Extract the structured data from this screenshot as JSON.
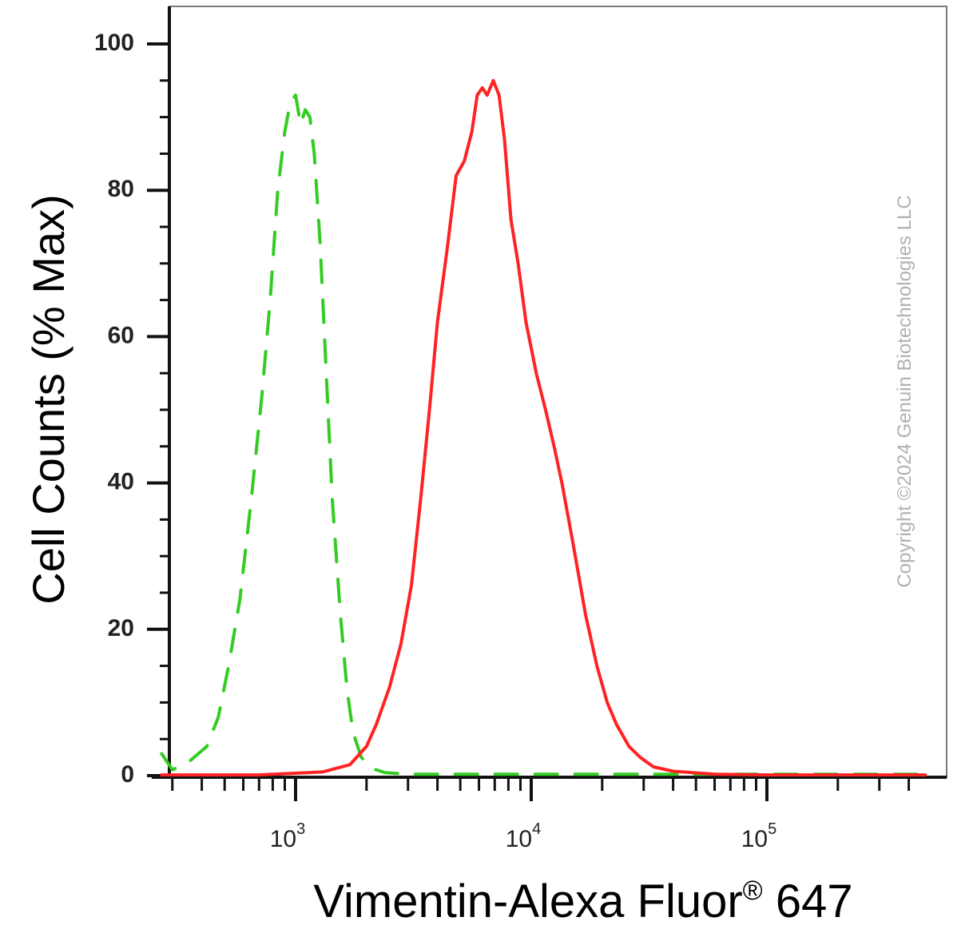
{
  "chart_data": {
    "type": "line",
    "xlabel": "Vimentin-Alexa Fluor",
    "xlabel_superscript": "®",
    "xlabel_suffix": " 647",
    "ylabel": "Cell Counts (% Max)",
    "x_scale": "log",
    "xlim": [
      270,
      470000
    ],
    "ylim": [
      0,
      105
    ],
    "y_ticks": [
      "0",
      "20",
      "40",
      "60",
      "80",
      "100"
    ],
    "x_ticks": [
      {
        "base": "10",
        "exp": "3",
        "value": 1000
      },
      {
        "base": "10",
        "exp": "4",
        "value": 10000
      },
      {
        "base": "10",
        "exp": "5",
        "value": 100000
      }
    ],
    "grid": false,
    "series": [
      {
        "color": "#33cc22",
        "dash": "dashed",
        "points": [
          [
            270,
            3
          ],
          [
            300,
            0.8
          ],
          [
            350,
            1.8
          ],
          [
            420,
            4
          ],
          [
            470,
            8
          ],
          [
            520,
            15
          ],
          [
            580,
            24
          ],
          [
            650,
            38
          ],
          [
            720,
            52
          ],
          [
            780,
            65
          ],
          [
            840,
            80
          ],
          [
            900,
            88
          ],
          [
            950,
            92
          ],
          [
            1000,
            93
          ],
          [
            1050,
            89
          ],
          [
            1100,
            91
          ],
          [
            1150,
            90
          ],
          [
            1200,
            85
          ],
          [
            1270,
            73
          ],
          [
            1350,
            55
          ],
          [
            1430,
            38
          ],
          [
            1550,
            22
          ],
          [
            1650,
            12
          ],
          [
            1750,
            6
          ],
          [
            1900,
            2.5
          ],
          [
            2100,
            1
          ],
          [
            2400,
            0.4
          ],
          [
            3000,
            0.2
          ],
          [
            10000,
            0.2
          ],
          [
            100000,
            0.2
          ],
          [
            470000,
            0.2
          ]
        ]
      },
      {
        "color": "#ff2222",
        "dash": "solid",
        "points": [
          [
            270,
            0.1
          ],
          [
            700,
            0.1
          ],
          [
            1300,
            0.5
          ],
          [
            1700,
            1.5
          ],
          [
            2000,
            4
          ],
          [
            2200,
            7
          ],
          [
            2500,
            12
          ],
          [
            2800,
            18
          ],
          [
            3100,
            26
          ],
          [
            3400,
            38
          ],
          [
            3700,
            50
          ],
          [
            4000,
            62
          ],
          [
            4400,
            72
          ],
          [
            4800,
            82
          ],
          [
            5200,
            84
          ],
          [
            5600,
            88
          ],
          [
            5900,
            93
          ],
          [
            6200,
            94
          ],
          [
            6500,
            93
          ],
          [
            6900,
            95
          ],
          [
            7300,
            93
          ],
          [
            7700,
            87
          ],
          [
            8200,
            76
          ],
          [
            8800,
            70
          ],
          [
            9500,
            62
          ],
          [
            10500,
            55
          ],
          [
            11500,
            50
          ],
          [
            12500,
            45
          ],
          [
            13500,
            40
          ],
          [
            15000,
            32
          ],
          [
            17000,
            22
          ],
          [
            19000,
            15
          ],
          [
            21000,
            10
          ],
          [
            23000,
            7
          ],
          [
            26000,
            4
          ],
          [
            29000,
            2.5
          ],
          [
            33000,
            1.2
          ],
          [
            40000,
            0.6
          ],
          [
            60000,
            0.2
          ],
          [
            100000,
            0.1
          ],
          [
            470000,
            0.1
          ]
        ]
      }
    ]
  },
  "watermark": "Copyright ©2024 Genuin Biotechnologies LLC"
}
